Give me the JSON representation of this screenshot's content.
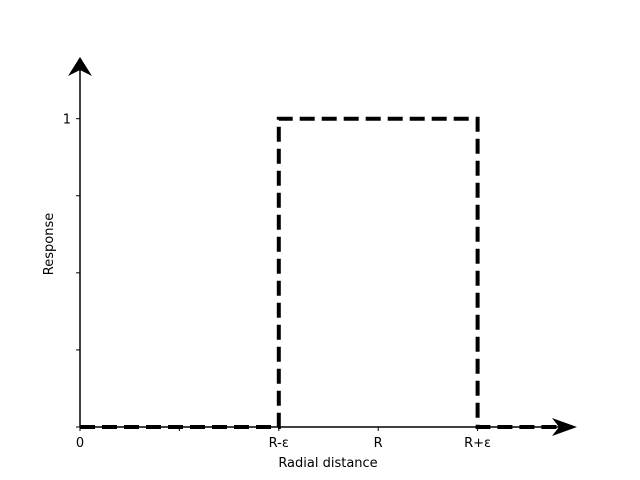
{
  "chart_data": {
    "type": "line",
    "title": "",
    "xlabel": "Radial distance",
    "ylabel": "Response",
    "xlim": [
      0,
      5
    ],
    "ylim": [
      0,
      1.2
    ],
    "grid": false,
    "x_ticks": [
      {
        "value": 0,
        "label": "0"
      },
      {
        "value": 1,
        "label": ""
      },
      {
        "value": 2,
        "label": "R-ε"
      },
      {
        "value": 3,
        "label": "R"
      },
      {
        "value": 4,
        "label": "R+ε"
      }
    ],
    "y_ticks": [
      {
        "value": 0,
        "label": ""
      },
      {
        "value": 0.25,
        "label": ""
      },
      {
        "value": 0.5,
        "label": ""
      },
      {
        "value": 0.75,
        "label": ""
      },
      {
        "value": 1,
        "label": "1"
      }
    ],
    "series": [
      {
        "style": "dashed",
        "color": "#000000",
        "x": [
          0,
          2,
          2,
          4,
          4,
          4.95
        ],
        "y": [
          0,
          0,
          1,
          1,
          0,
          0
        ]
      }
    ]
  }
}
